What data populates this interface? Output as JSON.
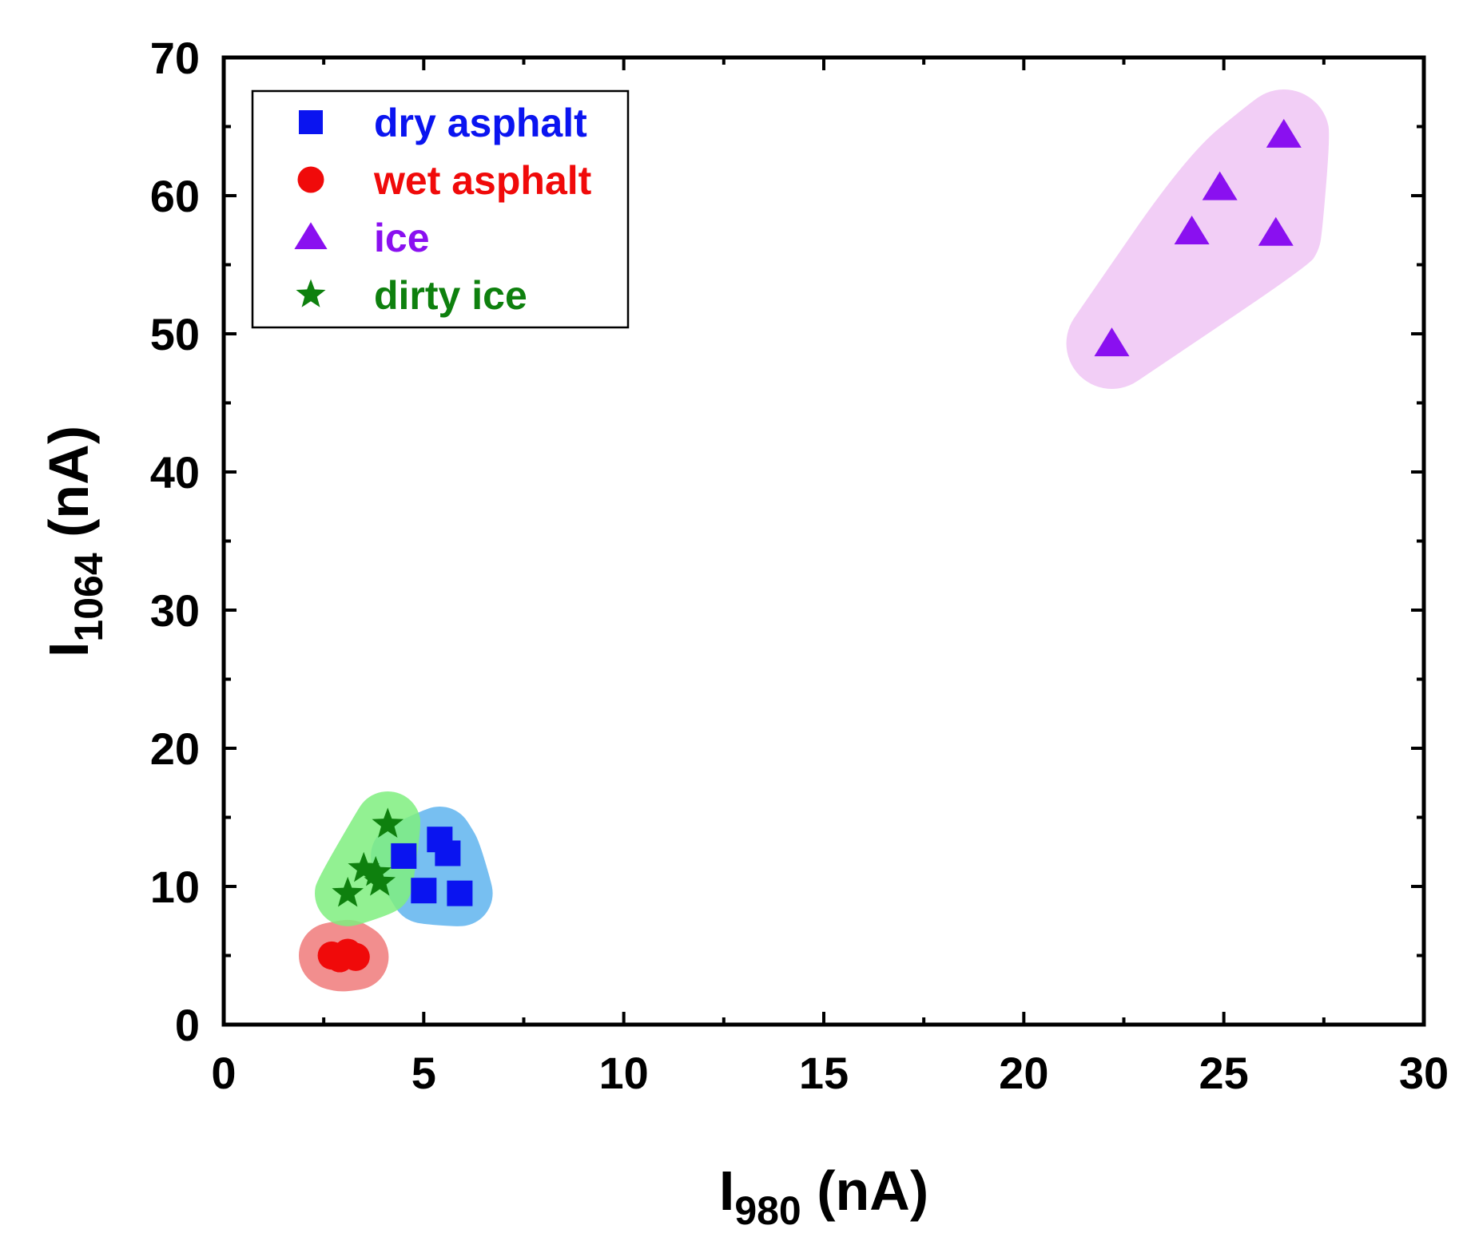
{
  "chart_data": {
    "type": "scatter",
    "title": "",
    "xlabel": {
      "main": "I",
      "sub": "980",
      "unit": " (nA)"
    },
    "ylabel": {
      "main": "I",
      "sub": "1064",
      "unit": " (nA)"
    },
    "xlim": [
      0,
      30
    ],
    "ylim": [
      0,
      70
    ],
    "xticks": [
      0,
      5,
      10,
      15,
      20,
      25,
      30
    ],
    "yticks": [
      0,
      10,
      20,
      30,
      40,
      50,
      60,
      70
    ],
    "grid": false,
    "legend_position": "top-left",
    "series": [
      {
        "name": "dry asphalt",
        "marker": "square",
        "color": "#0a14f0",
        "region_color": "#5fb4ee",
        "points": [
          [
            4.5,
            12.2
          ],
          [
            5.4,
            13.4
          ],
          [
            5.6,
            12.4
          ],
          [
            5.0,
            9.7
          ],
          [
            5.9,
            9.5
          ]
        ]
      },
      {
        "name": "wet asphalt",
        "marker": "circle",
        "color": "#f00a0a",
        "region_color": "#f07a7a",
        "points": [
          [
            2.7,
            5.0
          ],
          [
            2.9,
            4.8
          ],
          [
            3.1,
            5.2
          ],
          [
            3.3,
            4.9
          ],
          [
            3.0,
            5.0
          ]
        ]
      },
      {
        "name": "ice",
        "marker": "triangle",
        "color": "#8a10f0",
        "region_color": "#f0c6f4",
        "points": [
          [
            22.2,
            49.3
          ],
          [
            24.2,
            57.4
          ],
          [
            24.9,
            60.6
          ],
          [
            26.3,
            57.3
          ],
          [
            26.5,
            64.4
          ]
        ]
      },
      {
        "name": "dirty ice",
        "marker": "star",
        "color": "#0e800e",
        "region_color": "#7fee7f",
        "points": [
          [
            3.1,
            9.5
          ],
          [
            3.5,
            11.3
          ],
          [
            3.8,
            11.0
          ],
          [
            3.9,
            10.3
          ],
          [
            4.1,
            14.5
          ]
        ]
      }
    ]
  }
}
